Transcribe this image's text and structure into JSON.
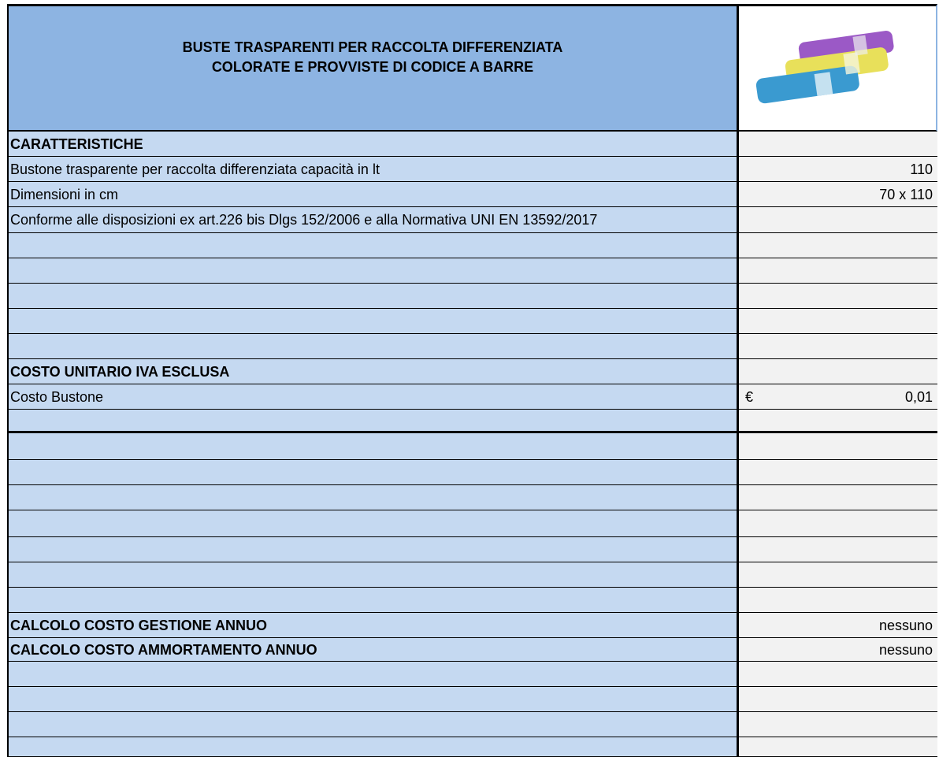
{
  "header": {
    "title": [
      "BUSTE TRASPARENTI PER RACCOLTA DIFFERENZIATA",
      "COLORATE E PROVVISTE DI CODICE A BARRE"
    ]
  },
  "sections": [
    {
      "heading": "CARATTERISTICHE",
      "rows": [
        {
          "label": "Bustone trasparente per raccolta differenziata capacità in lt",
          "value": 110
        },
        {
          "label": "Dimensioni in cm",
          "value": "70 x 110"
        },
        {
          "label": "Conforme alle disposizioni ex art.226 bis Dlgs 152/2006 e alla Normativa UNI EN 13592/2017"
        }
      ]
    },
    {
      "heading": "COSTO UNITARIO  IVA ESCLUSA",
      "rows": [
        {
          "label": "Costo Bustone",
          "currency": "€",
          "value": "0,01"
        }
      ]
    }
  ],
  "annual": [
    {
      "label": "CALCOLO COSTO GESTIONE ANNUO",
      "value": "nessuno"
    },
    {
      "label": "CALCOLO COSTO AMMORTAMENTO ANNUO",
      "value": "nessuno"
    }
  ]
}
